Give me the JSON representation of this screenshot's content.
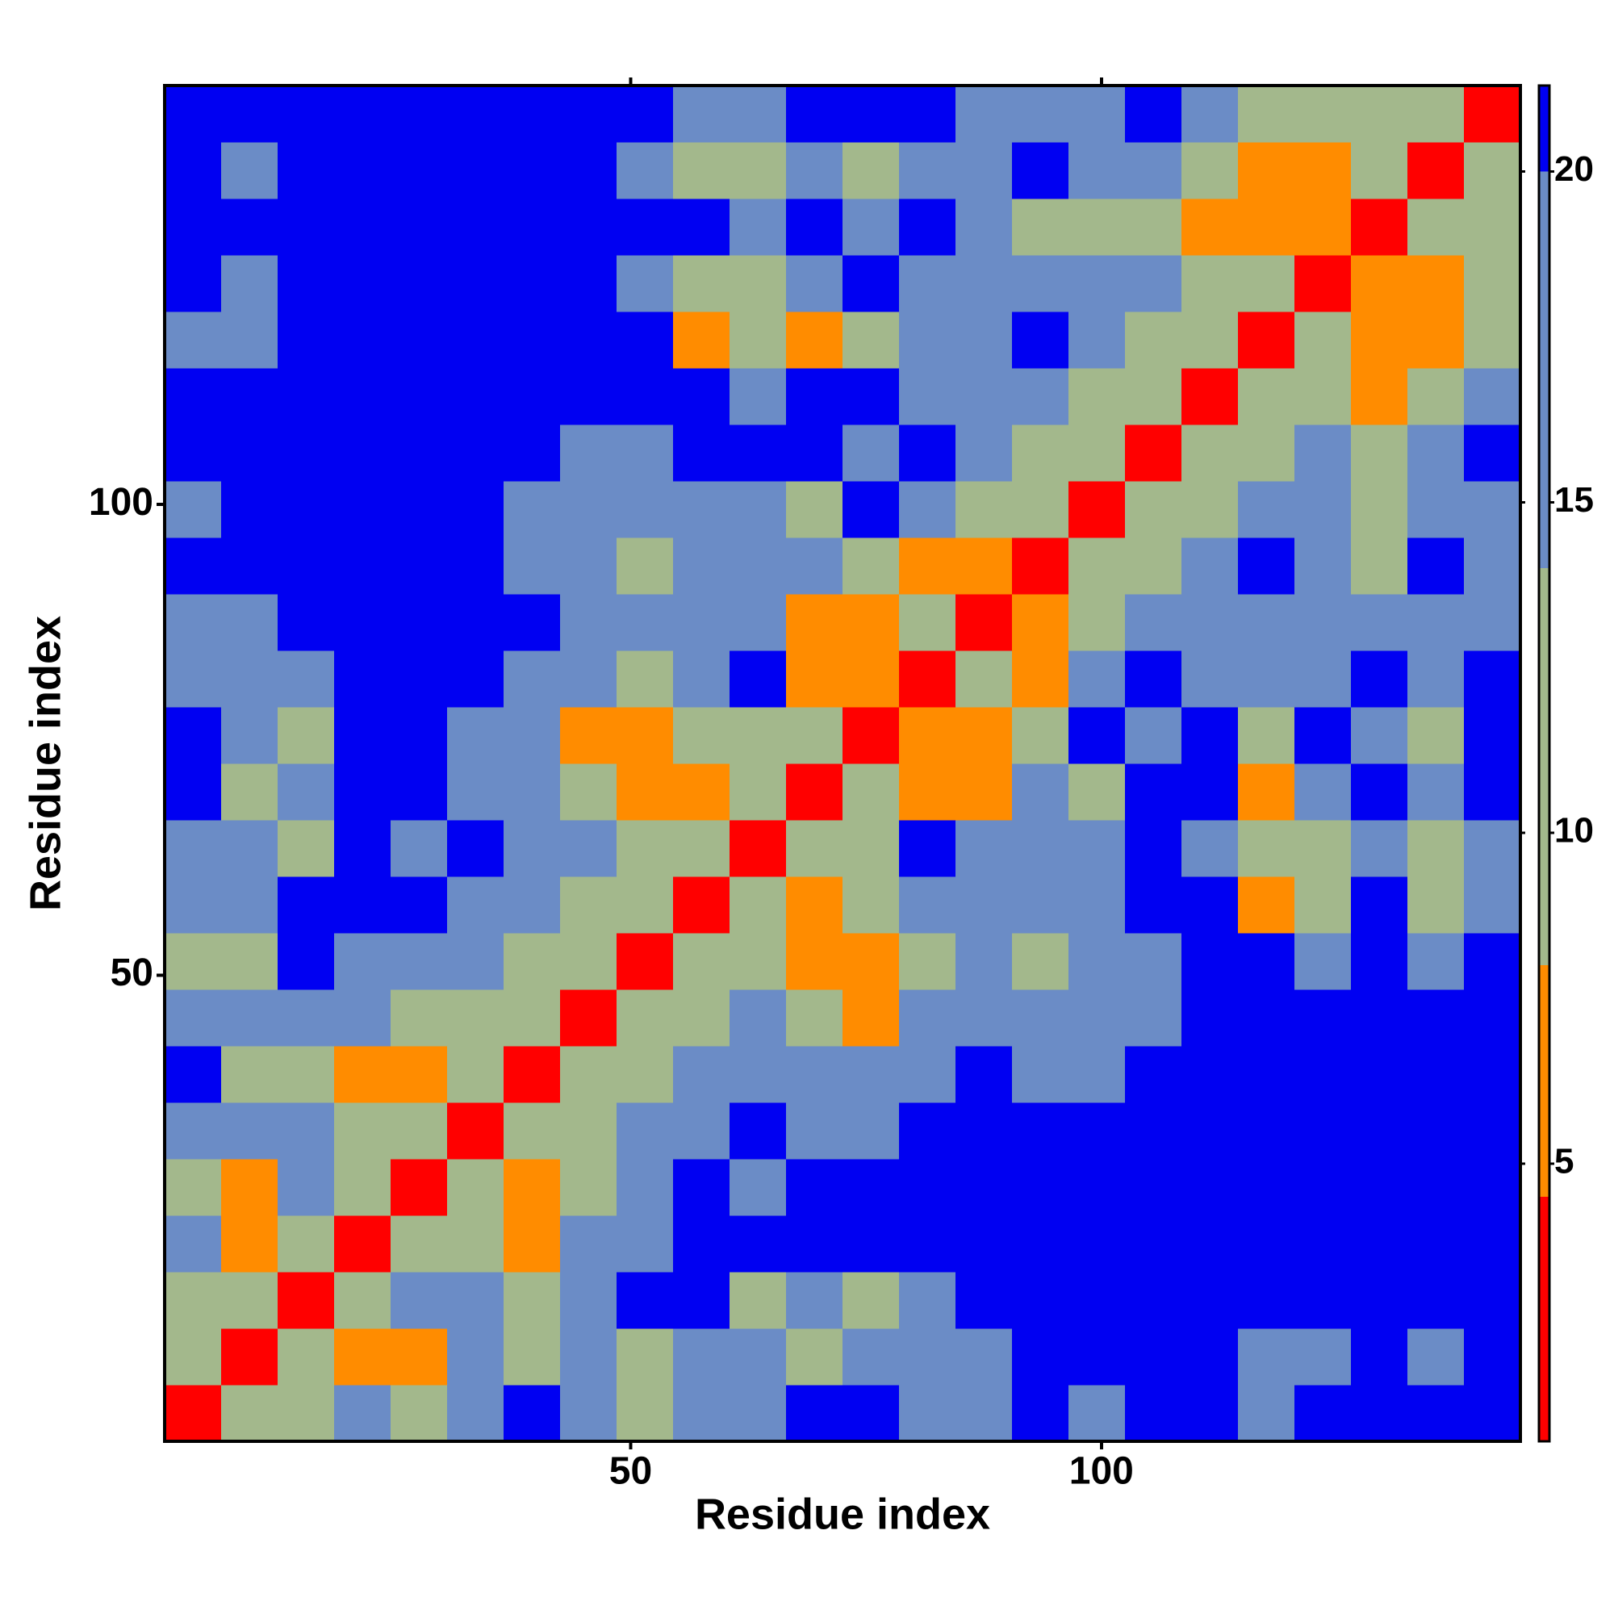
{
  "chart_data": {
    "type": "heatmap",
    "x_label": "Residue index",
    "y_label": "Residue index",
    "x_edges": [
      0.5,
      6.5,
      12.5,
      18.5,
      24.5,
      30.5,
      36.5,
      42.5,
      48.5,
      54.5,
      60.5,
      66.5,
      72.5,
      78.5,
      84.5,
      90.5,
      96.5,
      102.5,
      108.5,
      114.5,
      120.5,
      126.5,
      132.5,
      138.5,
      144.5
    ],
    "y_edges": [
      0.5,
      6.5,
      12.5,
      18.5,
      24.5,
      30.5,
      36.5,
      42.5,
      48.5,
      54.5,
      60.5,
      66.5,
      72.5,
      78.5,
      84.5,
      90.5,
      96.5,
      102.5,
      108.5,
      114.5,
      120.5,
      126.5,
      132.5,
      138.5,
      144.5
    ],
    "z": [
      [
        4,
        10,
        13,
        15,
        13,
        17,
        22,
        17,
        13,
        15,
        17,
        22,
        22,
        15,
        17,
        22,
        17,
        22,
        22,
        17,
        22,
        22,
        22,
        22
      ],
      [
        10,
        4,
        10,
        8,
        8,
        17,
        13,
        15,
        13,
        17,
        17,
        13,
        17,
        15,
        17,
        22,
        22,
        22,
        22,
        17,
        17,
        22,
        17,
        22
      ],
      [
        13,
        10,
        4,
        10,
        15,
        17,
        13,
        17,
        22,
        22,
        13,
        15,
        13,
        17,
        22,
        22,
        22,
        22,
        22,
        22,
        22,
        22,
        22,
        22
      ],
      [
        15,
        8,
        10,
        4,
        10,
        13,
        8,
        15,
        17,
        22,
        22,
        22,
        22,
        22,
        22,
        22,
        22,
        22,
        22,
        22,
        22,
        22,
        22,
        22
      ],
      [
        13,
        8,
        15,
        10,
        4,
        10,
        8,
        13,
        15,
        22,
        17,
        22,
        22,
        22,
        22,
        22,
        22,
        22,
        22,
        22,
        22,
        22,
        22,
        22
      ],
      [
        17,
        17,
        17,
        13,
        10,
        4,
        10,
        13,
        15,
        17,
        22,
        15,
        17,
        22,
        22,
        22,
        22,
        22,
        22,
        22,
        22,
        22,
        22,
        22
      ],
      [
        22,
        13,
        13,
        8,
        8,
        10,
        4,
        10,
        13,
        15,
        17,
        17,
        15,
        17,
        22,
        17,
        17,
        22,
        22,
        22,
        22,
        22,
        22,
        22
      ],
      [
        17,
        15,
        17,
        15,
        13,
        13,
        10,
        4,
        10,
        13,
        15,
        13,
        8,
        15,
        17,
        15,
        17,
        17,
        22,
        22,
        22,
        22,
        22,
        22
      ],
      [
        13,
        13,
        22,
        17,
        15,
        15,
        13,
        10,
        4,
        10,
        13,
        8,
        7,
        13,
        15,
        13,
        15,
        17,
        22,
        22,
        15,
        22,
        17,
        22
      ],
      [
        15,
        17,
        22,
        22,
        22,
        17,
        15,
        13,
        10,
        4,
        10,
        8,
        13,
        17,
        15,
        15,
        17,
        22,
        22,
        8,
        13,
        22,
        13,
        17
      ],
      [
        17,
        17,
        13,
        22,
        17,
        22,
        17,
        15,
        13,
        10,
        4,
        10,
        13,
        22,
        15,
        17,
        17,
        22,
        17,
        13,
        13,
        17,
        13,
        17
      ],
      [
        22,
        13,
        15,
        22,
        22,
        15,
        17,
        13,
        8,
        8,
        10,
        4,
        10,
        8,
        8,
        15,
        13,
        22,
        22,
        8,
        15,
        22,
        15,
        22
      ],
      [
        22,
        17,
        13,
        22,
        22,
        17,
        15,
        8,
        7,
        13,
        13,
        10,
        4,
        8,
        7,
        13,
        22,
        17,
        22,
        13,
        22,
        17,
        13,
        22
      ],
      [
        15,
        15,
        17,
        22,
        22,
        22,
        17,
        15,
        13,
        17,
        22,
        8,
        8,
        4,
        10,
        8,
        15,
        22,
        17,
        15,
        17,
        22,
        15,
        22
      ],
      [
        17,
        17,
        22,
        22,
        22,
        22,
        22,
        17,
        15,
        15,
        15,
        8,
        7,
        10,
        4,
        7,
        13,
        15,
        17,
        17,
        15,
        17,
        15,
        17
      ],
      [
        22,
        22,
        22,
        22,
        22,
        22,
        17,
        15,
        13,
        15,
        17,
        15,
        13,
        8,
        7,
        4,
        10,
        13,
        15,
        22,
        17,
        13,
        22,
        17
      ],
      [
        17,
        22,
        22,
        22,
        22,
        22,
        17,
        17,
        15,
        17,
        17,
        13,
        22,
        15,
        13,
        10,
        4,
        10,
        13,
        15,
        17,
        13,
        15,
        17
      ],
      [
        22,
        22,
        22,
        22,
        22,
        22,
        22,
        17,
        17,
        22,
        22,
        22,
        17,
        22,
        15,
        13,
        10,
        4,
        10,
        13,
        15,
        13,
        17,
        22
      ],
      [
        22,
        22,
        22,
        22,
        22,
        22,
        22,
        22,
        22,
        22,
        17,
        22,
        22,
        17,
        17,
        15,
        13,
        10,
        4,
        10,
        13,
        8,
        13,
        15
      ],
      [
        17,
        17,
        22,
        22,
        22,
        22,
        22,
        22,
        22,
        8,
        13,
        8,
        13,
        15,
        17,
        22,
        15,
        13,
        10,
        4,
        10,
        8,
        7,
        13
      ],
      [
        22,
        17,
        22,
        22,
        22,
        22,
        22,
        22,
        15,
        13,
        13,
        15,
        22,
        17,
        15,
        17,
        17,
        15,
        13,
        10,
        4,
        8,
        8,
        13
      ],
      [
        22,
        22,
        22,
        22,
        22,
        22,
        22,
        22,
        22,
        22,
        17,
        22,
        17,
        22,
        17,
        13,
        13,
        13,
        8,
        8,
        8,
        4,
        10,
        13
      ],
      [
        22,
        17,
        22,
        22,
        22,
        22,
        22,
        22,
        17,
        13,
        13,
        15,
        13,
        15,
        15,
        22,
        15,
        17,
        13,
        7,
        8,
        10,
        4,
        10
      ],
      [
        22,
        22,
        22,
        22,
        22,
        22,
        22,
        22,
        22,
        17,
        17,
        22,
        22,
        22,
        17,
        17,
        17,
        22,
        15,
        13,
        13,
        13,
        10,
        4
      ]
    ],
    "xlim": [
      0.5,
      144.5
    ],
    "ylim": [
      0.5,
      144.5
    ],
    "xticks": [
      50,
      100
    ],
    "yticks": [
      50,
      100
    ],
    "clim": [
      0.8,
      21.3
    ],
    "cticks": [
      5,
      10,
      15,
      20
    ],
    "color_breaks": [
      4.5,
      8,
      14,
      20
    ],
    "colors": [
      "#ff0000",
      "#ff8c00",
      "#a3b88c",
      "#6b8cc6",
      "#0000f2"
    ]
  }
}
